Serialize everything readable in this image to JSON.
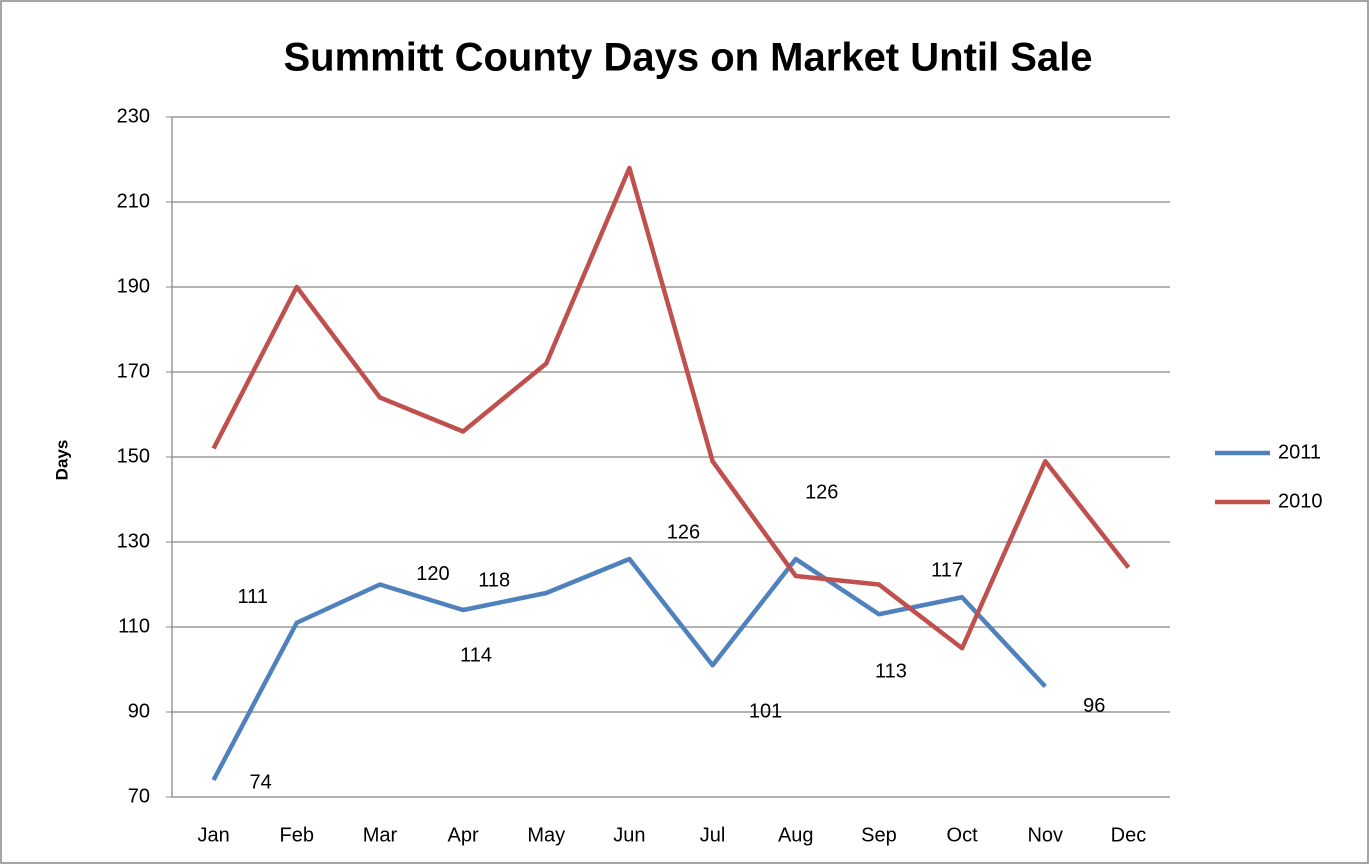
{
  "chart_data": {
    "type": "line",
    "title": "Summitt  County Days on Market Until Sale",
    "y_label": "Days",
    "categories": [
      "Jan",
      "Feb",
      "Mar",
      "Apr",
      "May",
      "Jun",
      "Jul",
      "Aug",
      "Sep",
      "Oct",
      "Nov",
      "Dec"
    ],
    "series": [
      {
        "name": "2011",
        "color": "#4f81bd",
        "values": [
          74,
          111,
          120,
          114,
          118,
          126,
          101,
          126,
          113,
          117,
          96,
          null
        ],
        "data_labels": true
      },
      {
        "name": "2010",
        "color": "#c0504d",
        "values": [
          152,
          190,
          164,
          156,
          172,
          218,
          149,
          122,
          120,
          105,
          149,
          124
        ],
        "data_labels": false
      }
    ],
    "ylim": [
      70,
      230
    ],
    "yticks": [
      70,
      90,
      110,
      130,
      150,
      170,
      190,
      210,
      230
    ],
    "grid": true,
    "legend": "right"
  }
}
